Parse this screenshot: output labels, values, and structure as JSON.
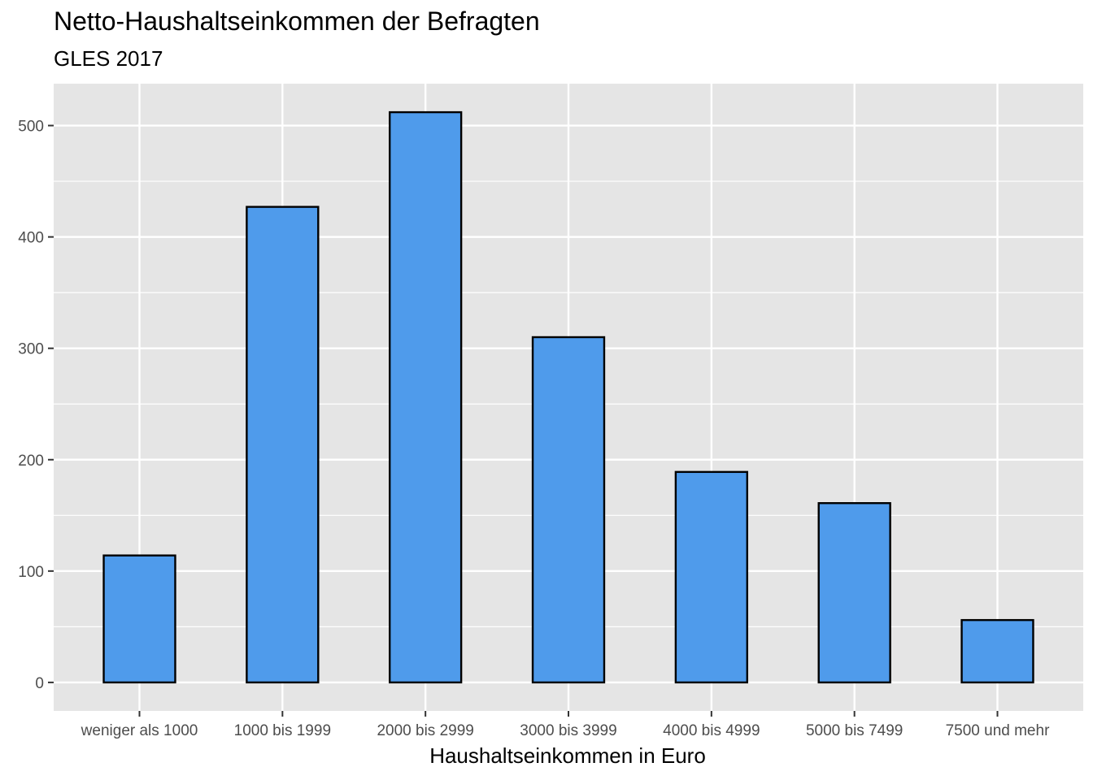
{
  "chart_data": {
    "type": "bar",
    "title": "Netto-Haushaltseinkommen der Befragten",
    "subtitle": "GLES 2017",
    "xlabel": "Haushaltseinkommen in Euro",
    "ylabel": "",
    "categories": [
      "weniger als 1000",
      "1000 bis 1999",
      "2000 bis 2999",
      "3000 bis 3999",
      "4000 bis 4999",
      "5000 bis 7499",
      "7500 und mehr"
    ],
    "values": [
      114,
      427,
      512,
      310,
      189,
      161,
      56
    ],
    "ylim": [
      -25.6,
      537.6
    ],
    "yticks": [
      0,
      100,
      200,
      300,
      400,
      500
    ],
    "ytick_labels": [
      "0",
      "100",
      "200",
      "300",
      "400",
      "500"
    ],
    "grid": true,
    "legend": "none",
    "colors": {
      "bar_fill": "#4f9beb",
      "bar_stroke": "#000000",
      "panel": "#e5e5e5",
      "grid": "#ffffff"
    }
  }
}
